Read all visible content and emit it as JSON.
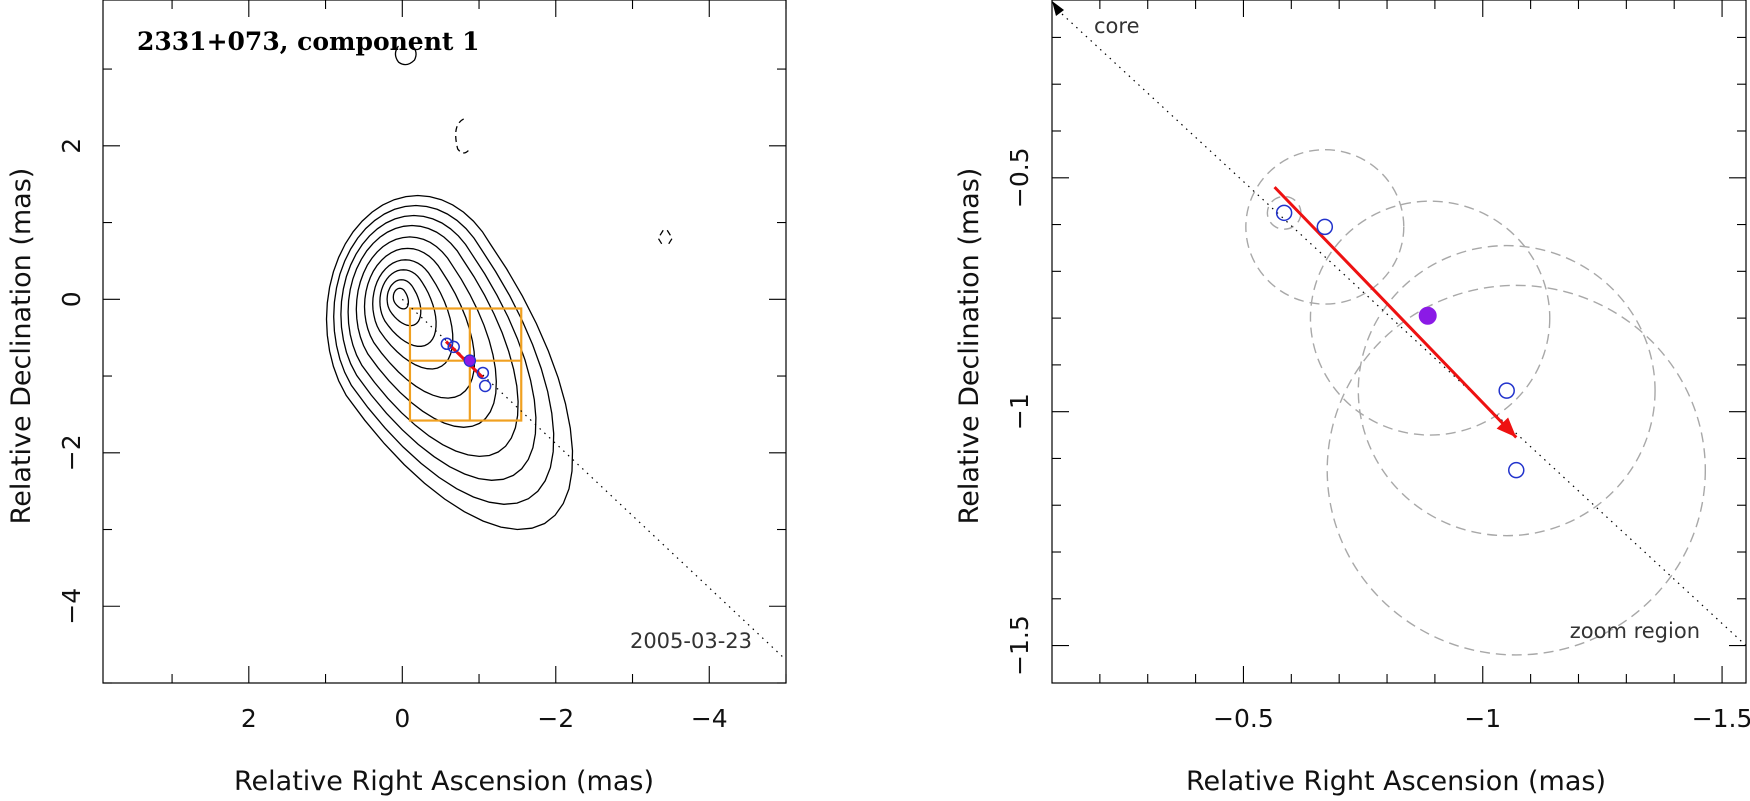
{
  "chart_data": [
    {
      "type": "scatter",
      "title": "2331+073, component 1",
      "epoch": "2005-03-23",
      "xlabel": "Relative Right Ascension (mas)",
      "ylabel": "Relative Declination (mas)",
      "xlim": [
        3.9,
        -5.0
      ],
      "ylim": [
        -5.0,
        3.9
      ],
      "xticks": [
        {
          "value": 2,
          "label": "2"
        },
        {
          "value": 0,
          "label": "0"
        },
        {
          "value": -2,
          "label": "−2"
        },
        {
          "value": -4,
          "label": "−4"
        }
      ],
      "yticks": [
        {
          "value": 2,
          "label": "2"
        },
        {
          "value": 0,
          "label": "0"
        },
        {
          "value": -2,
          "label": "−2"
        },
        {
          "value": -4,
          "label": "−4"
        }
      ],
      "component_positions": [
        {
          "x": -0.58,
          "y": -0.58
        },
        {
          "x": -0.67,
          "y": -0.62
        },
        {
          "x": -0.88,
          "y": -0.8
        },
        {
          "x": -1.05,
          "y": -0.96
        },
        {
          "x": -1.08,
          "y": -1.13
        }
      ],
      "mean_position": {
        "x": -0.88,
        "y": -0.8
      },
      "motion_vector": {
        "from": [
          -0.57,
          -0.55
        ],
        "to": [
          -1.05,
          -1.02
        ]
      },
      "ridge_line": {
        "from": [
          0.0,
          0.0
        ],
        "to": [
          -5.0,
          -4.7
        ]
      },
      "zoom_box": {
        "x": [
          -0.1,
          -1.55
        ],
        "y": [
          -0.12,
          -1.58
        ]
      }
    },
    {
      "type": "scatter",
      "title": "",
      "xlabel": "Relative Right Ascension (mas)",
      "ylabel": "Relative Declination (mas)",
      "xlim": [
        -0.1,
        -1.55
      ],
      "ylim": [
        -1.58,
        -0.12
      ],
      "xticks": [
        {
          "value": -0.5,
          "label": "−0.5"
        },
        {
          "value": -1,
          "label": "−1"
        },
        {
          "value": -1.5,
          "label": "−1.5"
        }
      ],
      "yticks": [
        {
          "value": -0.5,
          "label": "−0.5"
        },
        {
          "value": -1,
          "label": "−1"
        },
        {
          "value": -1.5,
          "label": "−1.5"
        }
      ],
      "core_label": "core",
      "zoom_label": "zoom region",
      "component_positions": [
        {
          "x": -0.585,
          "y": -0.575
        },
        {
          "x": -0.67,
          "y": -0.605
        },
        {
          "x": -1.05,
          "y": -0.955
        },
        {
          "x": -1.07,
          "y": -1.125
        }
      ],
      "mean_position": {
        "x": -0.885,
        "y": -0.795
      },
      "uncertainty_circles": [
        {
          "x": -0.585,
          "y": -0.575,
          "r": 0.035
        },
        {
          "x": -0.67,
          "y": -0.605,
          "r": 0.165
        },
        {
          "x": -0.89,
          "y": -0.8,
          "r": 0.25
        },
        {
          "x": -1.05,
          "y": -0.955,
          "r": 0.31
        },
        {
          "x": -1.07,
          "y": -1.125,
          "r": 0.395
        }
      ],
      "motion_vector": {
        "from": [
          -0.565,
          -0.52
        ],
        "to": [
          -1.07,
          -1.055
        ]
      },
      "ridge_line": {
        "from": [
          -0.1,
          -0.12
        ],
        "to": [
          -1.55,
          -1.5
        ]
      }
    }
  ]
}
